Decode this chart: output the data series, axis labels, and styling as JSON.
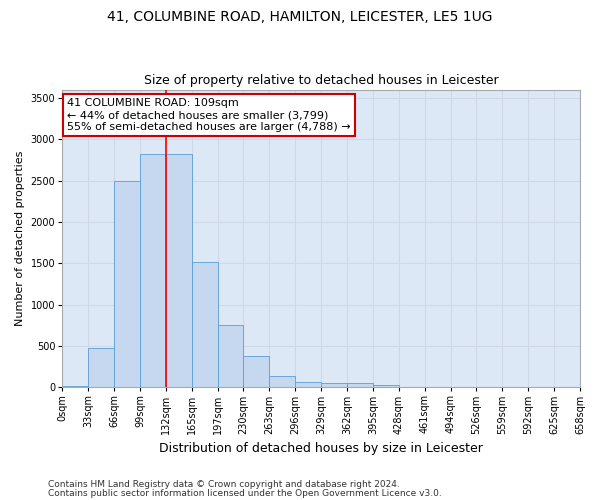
{
  "title1": "41, COLUMBINE ROAD, HAMILTON, LEICESTER, LE5 1UG",
  "title2": "Size of property relative to detached houses in Leicester",
  "xlabel": "Distribution of detached houses by size in Leicester",
  "ylabel": "Number of detached properties",
  "bar_values": [
    20,
    480,
    2500,
    2820,
    2820,
    1520,
    750,
    385,
    140,
    70,
    50,
    50,
    30,
    0,
    0,
    0,
    0,
    0,
    0,
    0
  ],
  "bin_labels": [
    "0sqm",
    "33sqm",
    "66sqm",
    "99sqm",
    "132sqm",
    "165sqm",
    "197sqm",
    "230sqm",
    "263sqm",
    "296sqm",
    "329sqm",
    "362sqm",
    "395sqm",
    "428sqm",
    "461sqm",
    "494sqm",
    "526sqm",
    "559sqm",
    "592sqm",
    "625sqm",
    "658sqm"
  ],
  "bar_color": "#c5d8f0",
  "bar_edge_color": "#5a9fd4",
  "red_line_bin": 3,
  "annotation_line1": "41 COLUMBINE ROAD: 109sqm",
  "annotation_line2": "← 44% of detached houses are smaller (3,799)",
  "annotation_line3": "55% of semi-detached houses are larger (4,788) →",
  "annotation_box_color": "#ffffff",
  "annotation_border_color": "#cc0000",
  "ylim": [
    0,
    3600
  ],
  "yticks": [
    0,
    500,
    1000,
    1500,
    2000,
    2500,
    3000,
    3500
  ],
  "grid_color": "#d0d8e8",
  "bg_color": "#dce8f5",
  "fig_bg_color": "#ffffff",
  "footer1": "Contains HM Land Registry data © Crown copyright and database right 2024.",
  "footer2": "Contains public sector information licensed under the Open Government Licence v3.0.",
  "title1_fontsize": 10,
  "title2_fontsize": 9,
  "xlabel_fontsize": 9,
  "ylabel_fontsize": 8,
  "tick_fontsize": 7,
  "annotation_fontsize": 8,
  "footer_fontsize": 6.5
}
